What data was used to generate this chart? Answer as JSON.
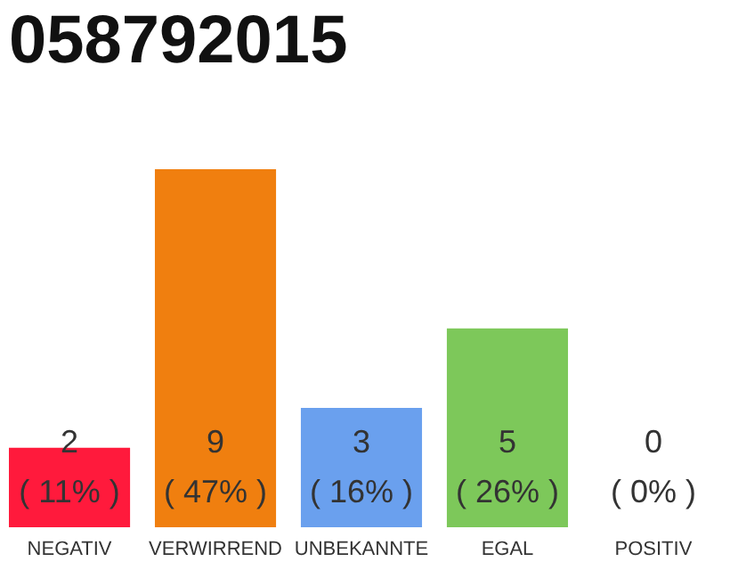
{
  "chart_data": {
    "type": "bar",
    "title": "058792015",
    "categories": [
      "NEGATIV",
      "VERWIRREND",
      "UNBEKANNTE",
      "EGAL",
      "POSITIV"
    ],
    "values": [
      2,
      9,
      3,
      5,
      0
    ],
    "colors": [
      "#ff1a3c",
      "#f07f0f",
      "#6aa0ee",
      "#7dc85a",
      "#e0e0e0"
    ],
    "value_labels": [
      "2\n( 11% )",
      "9\n( 47% )",
      "3\n( 16% )",
      "5\n( 26% )",
      "0\n( 0% )"
    ],
    "tick_labels": "x"
  }
}
